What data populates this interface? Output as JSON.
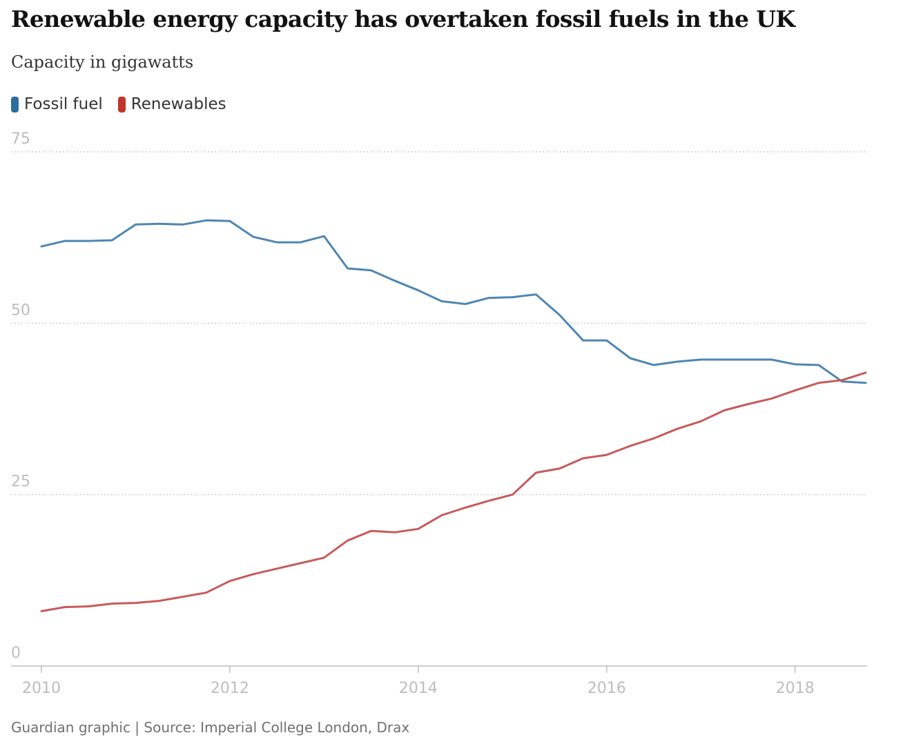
{
  "chart_data": {
    "type": "line",
    "title": "Renewable energy capacity has overtaken fossil fuels in the UK",
    "subtitle": "Capacity in gigawatts",
    "source": "Guardian graphic | Source: Imperial College London, Drax",
    "xlim": [
      2010,
      2018.75
    ],
    "ylim": [
      0,
      75
    ],
    "y_ticks": [
      0,
      25,
      50,
      75
    ],
    "x_ticks": [
      2010,
      2012,
      2014,
      2016,
      2018
    ],
    "grid": "horizontal dotted",
    "legend_position": "top-left",
    "x": [
      2010,
      2010.25,
      2010.5,
      2010.75,
      2011,
      2011.25,
      2011.5,
      2011.75,
      2012,
      2012.25,
      2012.5,
      2012.75,
      2013,
      2013.25,
      2013.5,
      2013.75,
      2014,
      2014.25,
      2014.5,
      2014.75,
      2015,
      2015.25,
      2015.5,
      2015.75,
      2016,
      2016.25,
      2016.5,
      2016.75,
      2017,
      2017.25,
      2017.5,
      2017.75,
      2018,
      2018.25,
      2018.5,
      2018.75
    ],
    "series": [
      {
        "name": "Fossil fuel",
        "color": "#4e86b2",
        "legend_color": "#2b6e9e",
        "values": [
          61.2,
          62,
          62,
          62.1,
          64.4,
          64.5,
          64.4,
          65,
          64.9,
          62.6,
          61.8,
          61.8,
          62.7,
          58,
          57.7,
          56.2,
          54.8,
          53.2,
          52.8,
          53.7,
          53.8,
          54.2,
          51.2,
          47.5,
          47.5,
          44.9,
          43.9,
          44.4,
          44.7,
          44.7,
          44.7,
          44.7,
          44,
          43.9,
          41.5,
          41.3
        ]
      },
      {
        "name": "Renewables",
        "color": "#c85a5a",
        "legend_color": "#c1342c",
        "values": [
          8,
          8.6,
          8.7,
          9.1,
          9.2,
          9.5,
          10.1,
          10.7,
          12.4,
          13.4,
          14.2,
          15,
          15.8,
          18.3,
          19.7,
          19.5,
          20,
          22,
          23.1,
          24.1,
          25,
          28.2,
          28.8,
          30.3,
          30.8,
          32.1,
          33.2,
          34.6,
          35.7,
          37.3,
          38.2,
          39,
          40.2,
          41.3,
          41.7,
          42.8
        ]
      }
    ]
  }
}
